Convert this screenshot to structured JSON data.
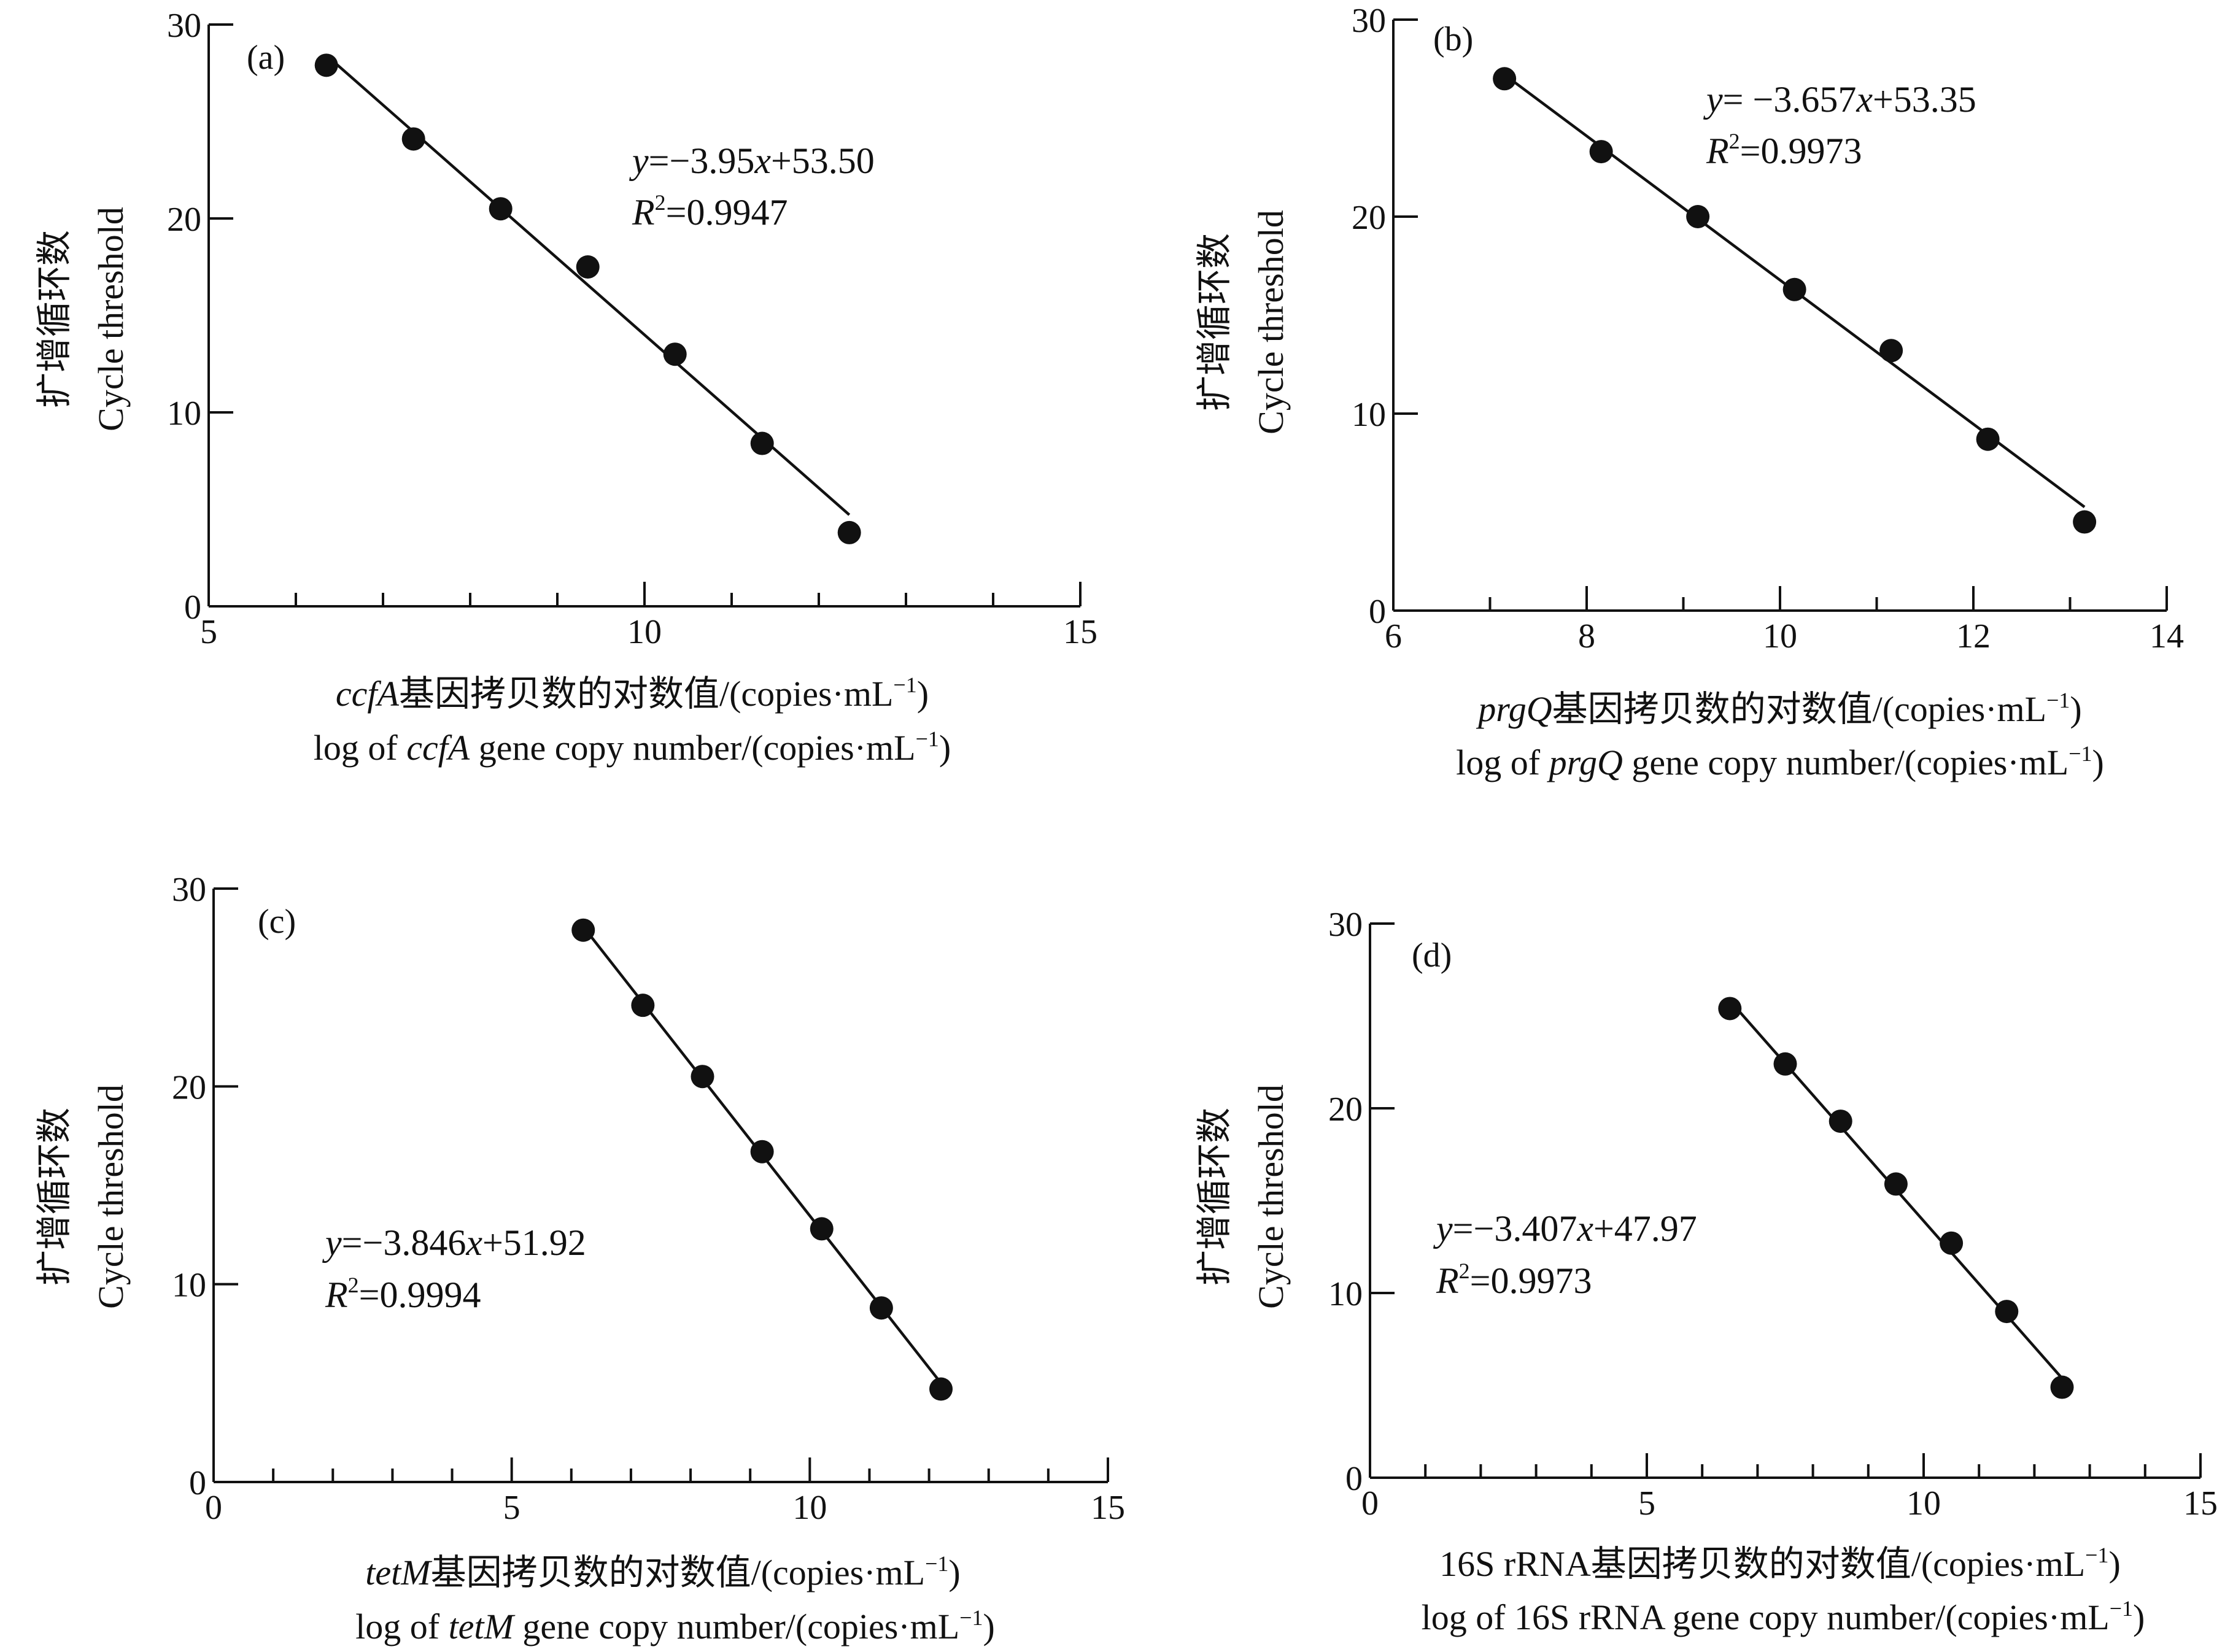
{
  "chart_data": [
    {
      "type": "scatter",
      "panel_label": "(a)",
      "equation": {
        "y": "y",
        "rest": "=−3.95",
        "x": "x",
        "tail": "+53.50"
      },
      "r2": {
        "R": "R",
        "sup": "2",
        "rest": "=0.9947"
      },
      "xlabel_cn": {
        "italic": "ccfA",
        "text": "基因拷贝数的对数值/(copies·mL",
        "sup": "−1",
        "close": ")"
      },
      "xlabel_en": {
        "pre": "log of ",
        "italic": "ccfA",
        "text": " gene copy number/(copies·mL",
        "sup": "−1",
        "close": ")"
      },
      "ylabel_cn": "扩增循环数",
      "ylabel_en": "Cycle threshold",
      "xlim": [
        5,
        15
      ],
      "ylim": [
        0,
        30
      ],
      "xticks": [
        5,
        10,
        15
      ],
      "xticks_labels": [
        "5",
        "10",
        "15"
      ],
      "yticks": [
        0,
        10,
        20,
        30
      ],
      "yticks_labels": [
        "0",
        "10",
        "20",
        "30"
      ],
      "minor_x_step": 1,
      "points": [
        {
          "x": 6.35,
          "y": 27.9
        },
        {
          "x": 7.35,
          "y": 24.1
        },
        {
          "x": 8.35,
          "y": 20.5
        },
        {
          "x": 9.35,
          "y": 17.5
        },
        {
          "x": 10.35,
          "y": 13.0
        },
        {
          "x": 11.35,
          "y": 8.4
        },
        {
          "x": 12.35,
          "y": 3.8
        }
      ],
      "fit": {
        "slope": -3.95,
        "intercept": 53.5,
        "x_range": [
          6.35,
          12.35
        ]
      }
    },
    {
      "type": "scatter",
      "panel_label": "(b)",
      "equation": {
        "y": "y",
        "rest": "= −3.657",
        "x": "x",
        "tail": "+53.35"
      },
      "r2": {
        "R": "R",
        "sup": "2",
        "rest": "=0.9973"
      },
      "xlabel_cn": {
        "italic": "prgQ",
        "text": "基因拷贝数的对数值/(copies·mL",
        "sup": "−1",
        "close": ")"
      },
      "xlabel_en": {
        "pre": "log of ",
        "italic": "prgQ",
        "text": " gene copy number/(copies·mL",
        "sup": "−1",
        "close": ")"
      },
      "ylabel_cn": "扩增循环数",
      "ylabel_en": "Cycle threshold",
      "xlim": [
        6,
        14
      ],
      "ylim": [
        0,
        30
      ],
      "xticks": [
        6,
        8,
        10,
        12,
        14
      ],
      "xticks_labels": [
        "6",
        "8",
        "10",
        "12",
        "14"
      ],
      "yticks": [
        0,
        10,
        20,
        30
      ],
      "yticks_labels": [
        "0",
        "10",
        "20",
        "30"
      ],
      "minor_x_step": 1,
      "points": [
        {
          "x": 7.15,
          "y": 27.0
        },
        {
          "x": 8.15,
          "y": 23.3
        },
        {
          "x": 9.15,
          "y": 20.0
        },
        {
          "x": 10.15,
          "y": 16.3
        },
        {
          "x": 11.15,
          "y": 13.2
        },
        {
          "x": 12.15,
          "y": 8.7
        },
        {
          "x": 13.15,
          "y": 4.5
        }
      ],
      "fit": {
        "slope": -3.657,
        "intercept": 53.35,
        "x_range": [
          7.15,
          13.15
        ]
      }
    },
    {
      "type": "scatter",
      "panel_label": "(c)",
      "equation": {
        "y": "y",
        "rest": "=−3.846",
        "x": "x",
        "tail": "+51.92"
      },
      "r2": {
        "R": "R",
        "sup": "2",
        "rest": "=0.9994"
      },
      "xlabel_cn": {
        "italic": "tetM",
        "text": "基因拷贝数的对数值/(copies·mL",
        "sup": "−1",
        "close": ")"
      },
      "xlabel_en": {
        "pre": "log of ",
        "italic": "tetM",
        "text": " gene copy number/(copies·mL",
        "sup": "−1",
        "close": ")"
      },
      "ylabel_cn": "扩增循环数",
      "ylabel_en": "Cycle threshold",
      "xlim": [
        0,
        15
      ],
      "ylim": [
        0,
        30
      ],
      "xticks": [
        0,
        5,
        10,
        15
      ],
      "xticks_labels": [
        "0",
        "5",
        "10",
        "15"
      ],
      "yticks": [
        0,
        10,
        20,
        30
      ],
      "yticks_labels": [
        "0",
        "10",
        "20",
        "30"
      ],
      "minor_x_step": 1,
      "points": [
        {
          "x": 6.2,
          "y": 27.9
        },
        {
          "x": 7.2,
          "y": 24.1
        },
        {
          "x": 8.2,
          "y": 20.5
        },
        {
          "x": 9.2,
          "y": 16.7
        },
        {
          "x": 10.2,
          "y": 12.8
        },
        {
          "x": 11.2,
          "y": 8.8
        },
        {
          "x": 12.2,
          "y": 4.7
        }
      ],
      "fit": {
        "slope": -3.846,
        "intercept": 51.92,
        "x_range": [
          6.2,
          12.2
        ]
      }
    },
    {
      "type": "scatter",
      "panel_label": "(d)",
      "equation": {
        "y": "y",
        "rest": "=−3.407",
        "x": "x",
        "tail": "+47.97"
      },
      "r2": {
        "R": "R",
        "sup": "2",
        "rest": "=0.9973"
      },
      "xlabel_cn": {
        "italic": "",
        "text": "16S rRNA基因拷贝数的对数值/(copies·mL",
        "sup": "−1",
        "close": ")"
      },
      "xlabel_en": {
        "pre": "log of ",
        "italic": "",
        "text": "16S rRNA gene copy number/(copies·mL",
        "sup": "−1",
        "close": ")"
      },
      "ylabel_cn": "扩增循环数",
      "ylabel_en": "Cycle threshold",
      "xlim": [
        0,
        15
      ],
      "ylim": [
        0,
        30
      ],
      "xticks": [
        0,
        5,
        10,
        15
      ],
      "xticks_labels": [
        "0",
        "5",
        "10",
        "15"
      ],
      "yticks": [
        0,
        10,
        20,
        30
      ],
      "yticks_labels": [
        "0",
        "10",
        "20",
        "30"
      ],
      "minor_x_step": 1,
      "points": [
        {
          "x": 6.5,
          "y": 25.4
        },
        {
          "x": 7.5,
          "y": 22.4
        },
        {
          "x": 8.5,
          "y": 19.3
        },
        {
          "x": 9.5,
          "y": 15.9
        },
        {
          "x": 10.5,
          "y": 12.7
        },
        {
          "x": 11.5,
          "y": 9.0
        },
        {
          "x": 12.5,
          "y": 4.9
        }
      ],
      "fit": {
        "slope": -3.407,
        "intercept": 47.97,
        "x_range": [
          6.5,
          12.5
        ]
      }
    }
  ]
}
